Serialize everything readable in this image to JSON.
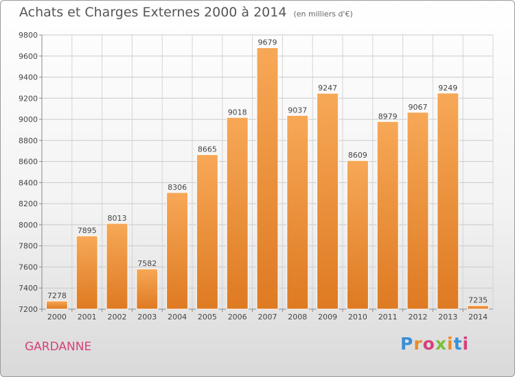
{
  "title": {
    "main": "Achats et Charges Externes 2000 à 2014",
    "unit": "(en milliers d'€)"
  },
  "place_label": "GARDANNE",
  "logo": {
    "text": "Proxiti"
  },
  "colors": {
    "bar_light": "#f6a654",
    "bar_dark": "#e07d24",
    "grid": "#c8c8c8",
    "place": "#d6407a"
  },
  "chart_data": {
    "type": "bar",
    "title": "Achats et Charges Externes 2000 à 2014",
    "subtitle": "(en milliers d'€)",
    "xlabel": "",
    "ylabel": "",
    "categories": [
      "2000",
      "2001",
      "2002",
      "2003",
      "2004",
      "2005",
      "2006",
      "2007",
      "2008",
      "2009",
      "2010",
      "2011",
      "2012",
      "2013",
      "2014"
    ],
    "values": [
      7278,
      7895,
      8013,
      7582,
      8306,
      8665,
      9018,
      9679,
      9037,
      9247,
      8609,
      8979,
      9067,
      9249,
      7235
    ],
    "ylim": [
      7200,
      9800
    ],
    "yticks": [
      7200,
      7400,
      7600,
      7800,
      8000,
      8200,
      8400,
      8600,
      8800,
      9000,
      9200,
      9400,
      9600,
      9800
    ],
    "grid": true,
    "legend": "none"
  }
}
